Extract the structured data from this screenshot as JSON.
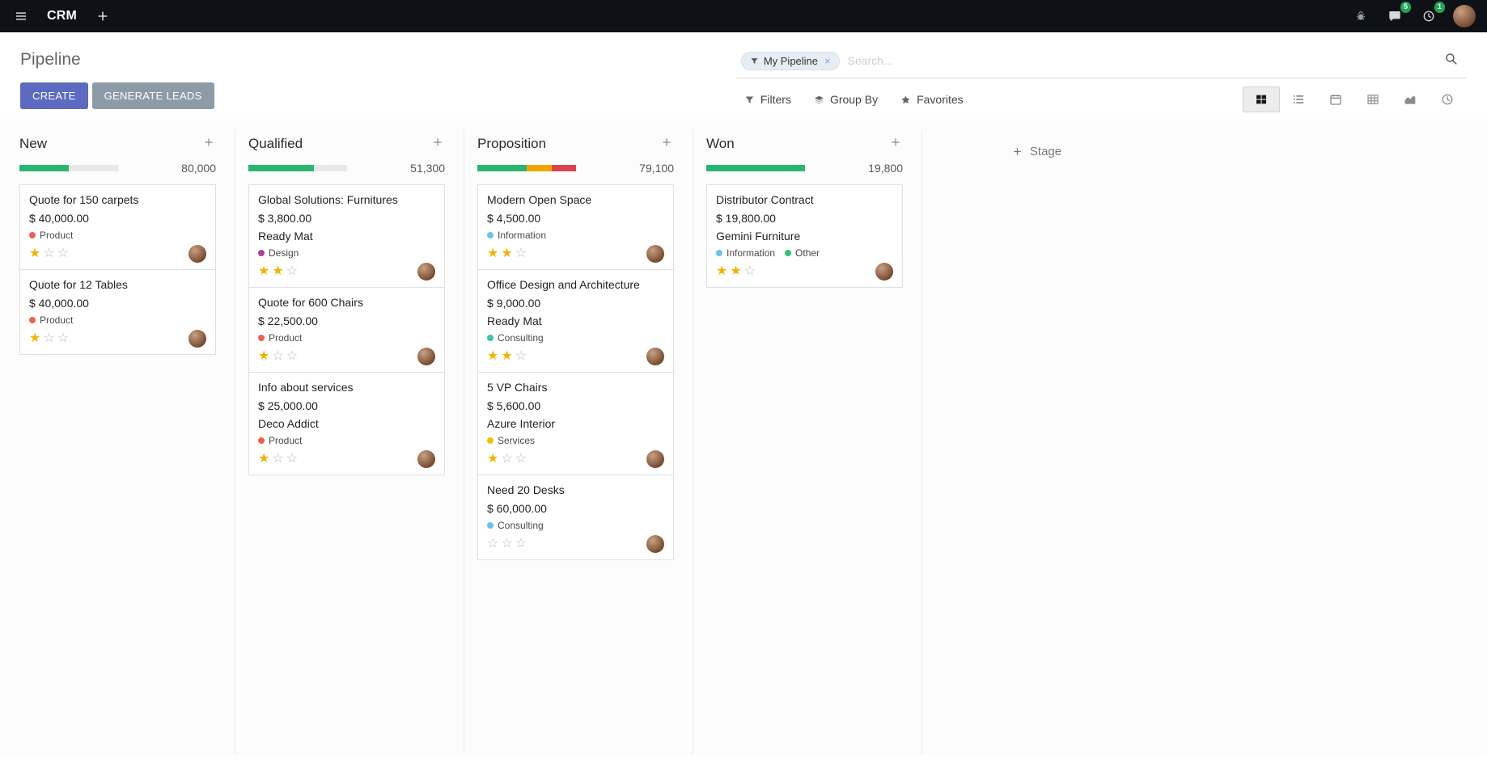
{
  "topbar": {
    "app_name": "CRM",
    "message_count": "5",
    "activity_count": "1"
  },
  "control_panel": {
    "title": "Pipeline",
    "buttons": {
      "create": "CREATE",
      "generate_leads": "GENERATE LEADS"
    },
    "search": {
      "facet": "My Pipeline",
      "placeholder": "Search..."
    },
    "menus": {
      "filters": "Filters",
      "group_by": "Group By",
      "favorites": "Favorites"
    },
    "view_switcher": {
      "active": "kanban",
      "views": [
        "kanban",
        "list",
        "calendar",
        "pivot",
        "graph",
        "activity"
      ]
    }
  },
  "icons": {
    "topbar": [
      "hamburger",
      "plus",
      "bug",
      "comment",
      "clock",
      "avatar"
    ],
    "search": [
      "funnel",
      "magnifier",
      "close"
    ],
    "menus": [
      "funnel",
      "layers",
      "star"
    ],
    "card": [
      "star",
      "phone",
      "envelope",
      "clock",
      "avatar"
    ]
  },
  "board": {
    "add_stage_label": "Stage",
    "columns": [
      {
        "title": "New",
        "total": "80,000",
        "progress": [
          {
            "color": "success",
            "pct": 50
          }
        ],
        "cards": [
          {
            "title": "Quote for 150 carpets",
            "amount": "$ 40,000.00",
            "tags": [
              {
                "label": "Product",
                "color": "#f06050"
              }
            ],
            "stars": 1,
            "activity": {
              "icon": "clock",
              "color": "#8b8b8b"
            }
          },
          {
            "title": "Quote for 12 Tables",
            "amount": "$ 40,000.00",
            "tags": [
              {
                "label": "Product",
                "color": "#f06050"
              }
            ],
            "stars": 1,
            "activity": {
              "icon": "phone",
              "color": "#28a76a"
            }
          }
        ]
      },
      {
        "title": "Qualified",
        "total": "51,300",
        "progress": [
          {
            "color": "success",
            "pct": 66
          }
        ],
        "cards": [
          {
            "title": "Global Solutions: Furnitures",
            "amount": "$ 3,800.00",
            "partner": "Ready Mat",
            "tags": [
              {
                "label": "Design",
                "color": "#a9449a"
              }
            ],
            "stars": 2,
            "activity": {
              "icon": "phone",
              "color": "#28a76a"
            }
          },
          {
            "title": "Quote for 600 Chairs",
            "amount": "$ 22,500.00",
            "tags": [
              {
                "label": "Product",
                "color": "#f06050"
              }
            ],
            "stars": 1,
            "activity": {
              "icon": "clock",
              "color": "#8b8b8b"
            }
          },
          {
            "title": "Info about services",
            "amount": "$ 25,000.00",
            "partner": "Deco Addict",
            "tags": [
              {
                "label": "Product",
                "color": "#f06050"
              }
            ],
            "stars": 1,
            "activity": {
              "icon": "phone",
              "color": "#28a76a"
            }
          }
        ]
      },
      {
        "title": "Proposition",
        "total": "79,100",
        "progress": [
          {
            "color": "success",
            "pct": 50
          },
          {
            "color": "warning",
            "pct": 25
          },
          {
            "color": "danger",
            "pct": 25
          }
        ],
        "cards": [
          {
            "title": "Modern Open Space",
            "amount": "$ 4,500.00",
            "tags": [
              {
                "label": "Information",
                "color": "#6cc1ed"
              }
            ],
            "stars": 2,
            "activity": {
              "icon": "phone",
              "color": "#e5a300"
            }
          },
          {
            "title": "Office Design and Architecture",
            "amount": "$ 9,000.00",
            "partner": "Ready Mat",
            "tags": [
              {
                "label": "Consulting",
                "color": "#37c5ab"
              }
            ],
            "stars": 2,
            "activity": {
              "icon": "phone",
              "color": "#28a76a"
            }
          },
          {
            "title": "5 VP Chairs",
            "amount": "$ 5,600.00",
            "partner": "Azure Interior",
            "tags": [
              {
                "label": "Services",
                "color": "#efc300"
              }
            ],
            "stars": 1,
            "activity": {
              "icon": "envelope",
              "color": "#e8a800"
            }
          },
          {
            "title": "Need 20 Desks",
            "amount": "$ 60,000.00",
            "tags": [
              {
                "label": "Consulting",
                "color": "#6cc1ed"
              }
            ],
            "stars": 0,
            "activity": {
              "icon": "envelope",
              "color": "#28a76a"
            }
          }
        ]
      },
      {
        "title": "Won",
        "total": "19,800",
        "progress": [
          {
            "color": "success",
            "pct": 100
          }
        ],
        "cards": [
          {
            "title": "Distributor Contract",
            "amount": "$ 19,800.00",
            "partner": "Gemini Furniture",
            "tags": [
              {
                "label": "Information",
                "color": "#6cc1ed"
              },
              {
                "label": "Other",
                "color": "#2ec27e"
              }
            ],
            "stars": 2,
            "activity": {
              "icon": "phone",
              "color": "#28a76a"
            }
          }
        ]
      }
    ]
  },
  "colors": {
    "primary": "#5c6bc0",
    "secondary": "#8d9aa8",
    "success": "#2ab672",
    "warning": "#efa502",
    "danger": "#d9444f",
    "topbar_bg": "#0e1216",
    "badge": "#21a453",
    "star": "#f0b400"
  }
}
